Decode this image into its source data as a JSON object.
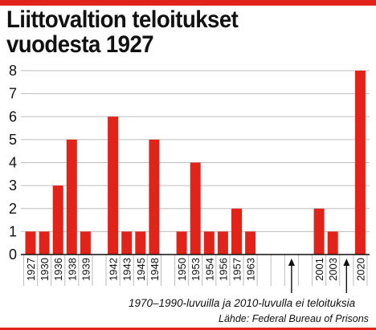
{
  "header": {
    "title_line1": "Liittovaltion teloitukset",
    "title_line2": "vuodesta 1927"
  },
  "colors": {
    "accent": "#e2231a",
    "bar": "#e2231a",
    "text": "#111111",
    "grid": "#bdbdbd"
  },
  "chart_data": {
    "type": "bar",
    "title": "Liittovaltion teloitukset vuodesta 1927",
    "xlabel": "",
    "ylabel": "",
    "categories": [
      "1927",
      "1930",
      "1936",
      "1938",
      "1939",
      "1942",
      "1943",
      "1945",
      "1948",
      "1950",
      "1953",
      "1954",
      "1956",
      "1957",
      "1963",
      "2001",
      "2003",
      "2020"
    ],
    "values": [
      1,
      1,
      3,
      5,
      1,
      6,
      1,
      1,
      5,
      1,
      4,
      1,
      1,
      2,
      1,
      2,
      1,
      8
    ],
    "ylim": [
      0,
      8
    ],
    "yticks": [
      "0",
      "1",
      "2",
      "3",
      "4",
      "5",
      "6",
      "7",
      "8"
    ],
    "grid": true,
    "gaps": [
      "1970–1990-luvuilla",
      "2010-luvulla"
    ],
    "annotation": "1970–1990-luvuilla ja 2010-luvulla ei teloituksia",
    "source": "Lähde: Federal Bureau of Prisons"
  }
}
